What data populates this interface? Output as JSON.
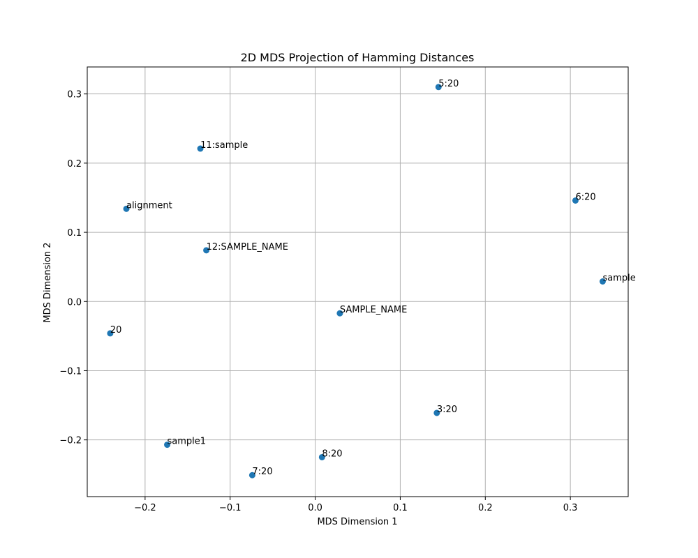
{
  "chart_data": {
    "type": "scatter",
    "title": "2D MDS Projection of Hamming Distances",
    "xlabel": "MDS Dimension 1",
    "ylabel": "MDS Dimension 2",
    "xlim": [
      -0.268,
      0.368
    ],
    "ylim": [
      -0.282,
      0.339
    ],
    "grid": true,
    "point_color": "#1f77b4",
    "xticks": [
      -0.2,
      -0.1,
      0.0,
      0.1,
      0.2,
      0.3
    ],
    "xtick_labels": [
      "−0.2",
      "−0.1",
      "0.0",
      "0.1",
      "0.2",
      "0.3"
    ],
    "yticks": [
      -0.2,
      -0.1,
      0.0,
      0.1,
      0.2,
      0.3
    ],
    "ytick_labels": [
      "−0.2",
      "−0.1",
      "0.0",
      "0.1",
      "0.2",
      "0.3"
    ],
    "points": [
      {
        "label": "5:20",
        "x": 0.145,
        "y": 0.31
      },
      {
        "label": "11:sample",
        "x": -0.135,
        "y": 0.221
      },
      {
        "label": "6:20",
        "x": 0.306,
        "y": 0.146
      },
      {
        "label": "alignment",
        "x": -0.222,
        "y": 0.134
      },
      {
        "label": "12:SAMPLE_NAME",
        "x": -0.128,
        "y": 0.074
      },
      {
        "label": "sample",
        "x": 0.338,
        "y": 0.029
      },
      {
        "label": "SAMPLE_NAME",
        "x": 0.029,
        "y": -0.017
      },
      {
        "label": "20",
        "x": -0.241,
        "y": -0.046
      },
      {
        "label": "3:20",
        "x": 0.143,
        "y": -0.161
      },
      {
        "label": "sample1",
        "x": -0.174,
        "y": -0.207
      },
      {
        "label": "8:20",
        "x": 0.008,
        "y": -0.225
      },
      {
        "label": "7:20",
        "x": -0.074,
        "y": -0.251
      }
    ]
  }
}
